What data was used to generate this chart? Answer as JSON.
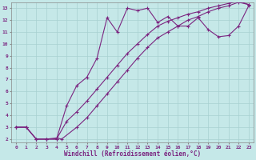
{
  "xlabel": "Windchill (Refroidissement éolien,°C)",
  "bg_color": "#c5e8e8",
  "line_color": "#7b2580",
  "grid_color": "#a8d0d0",
  "xlim": [
    -0.5,
    23.5
  ],
  "ylim": [
    1.7,
    13.5
  ],
  "xticks": [
    0,
    1,
    2,
    3,
    4,
    5,
    6,
    7,
    8,
    9,
    10,
    11,
    12,
    13,
    14,
    15,
    16,
    17,
    18,
    19,
    20,
    21,
    22,
    23
  ],
  "yticks": [
    2,
    3,
    4,
    5,
    6,
    7,
    8,
    9,
    10,
    11,
    12,
    13
  ],
  "line1_x": [
    0,
    1,
    2,
    3,
    4,
    5,
    6,
    7,
    8,
    9,
    10,
    11,
    12,
    13,
    14,
    15,
    16,
    17,
    18,
    19,
    20,
    21,
    22,
    23
  ],
  "line1_y": [
    3,
    3,
    2,
    2,
    2,
    4.8,
    6.5,
    7.2,
    8.8,
    12.2,
    11.0,
    13.0,
    12.8,
    13.0,
    11.8,
    12.3,
    11.5,
    11.5,
    12.2,
    11.2,
    10.6,
    10.7,
    11.5,
    13.2
  ],
  "line2_x": [
    0,
    1,
    2,
    3,
    4,
    4.5,
    6,
    7,
    8,
    9,
    10,
    11,
    12,
    13,
    14,
    15,
    16,
    17,
    18,
    19,
    20,
    21,
    22,
    23
  ],
  "line2_y": [
    3,
    3,
    2,
    2,
    2.1,
    2.0,
    3.0,
    3.8,
    4.8,
    5.8,
    6.8,
    7.8,
    8.8,
    9.7,
    10.5,
    11.0,
    11.5,
    12.0,
    12.3,
    12.7,
    13.0,
    13.2,
    13.5,
    13.3
  ],
  "line3_x": [
    0,
    1,
    2,
    3,
    4,
    5,
    6,
    7,
    8,
    9,
    10,
    11,
    12,
    13,
    14,
    15,
    16,
    17,
    18,
    19,
    20,
    21,
    22,
    23
  ],
  "line3_y": [
    3,
    3,
    2,
    2,
    2,
    3.5,
    4.3,
    5.2,
    6.2,
    7.2,
    8.2,
    9.2,
    10.0,
    10.8,
    11.5,
    11.9,
    12.2,
    12.5,
    12.7,
    13.0,
    13.2,
    13.4,
    13.6,
    13.3
  ],
  "marker": "+",
  "markersize": 3.5,
  "linewidth": 0.8,
  "tick_fontsize": 4.5,
  "xlabel_fontsize": 5.5
}
